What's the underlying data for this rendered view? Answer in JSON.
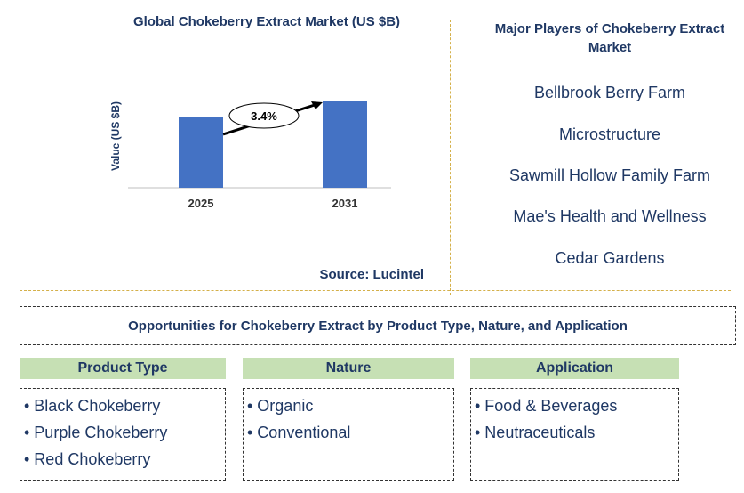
{
  "chart_data": {
    "type": "bar",
    "title": "Global Chokeberry Extract Market (US $B)",
    "ylabel": "Value (US $B)",
    "categories": [
      "2025",
      "2031"
    ],
    "values": [
      1.0,
      1.22
    ],
    "ylim": [
      0,
      1.4
    ],
    "annotation": "3.4%",
    "bar_color": "#4472c4",
    "source": "Source: Lucintel"
  },
  "players": {
    "title": "Major Players of Chokeberry Extract Market",
    "items": [
      "Bellbrook Berry Farm",
      "Microstructure",
      "Sawmill Hollow Family Farm",
      "Mae's Health and Wellness",
      "Cedar Gardens"
    ]
  },
  "opportunities": {
    "title": "Opportunities for Chokeberry Extract by Product Type, Nature, and Application",
    "categories": [
      {
        "header": "Product Type",
        "items": [
          "• Black Chokeberry",
          "• Purple Chokeberry",
          "• Red Chokeberry"
        ]
      },
      {
        "header": "Nature",
        "items": [
          "• Organic",
          "• Conventional"
        ]
      },
      {
        "header": "Application",
        "items": [
          "• Food & Beverages",
          "• Neutraceuticals"
        ]
      }
    ]
  }
}
